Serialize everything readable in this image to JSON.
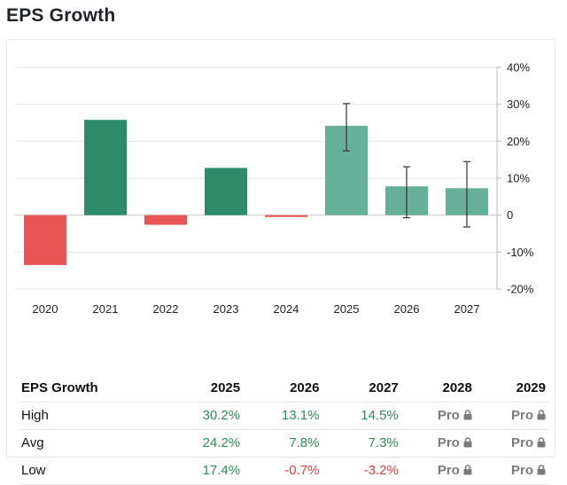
{
  "title": "EPS Growth",
  "colors": {
    "positive_actual": "#2e8b6a",
    "positive_forecast": "#66b09a",
    "negative": "#e85555",
    "error_bar": "#333333",
    "grid": "#e6e6e6",
    "positive_text": "#2e8b57",
    "negative_text": "#e03e3e"
  },
  "chart_data": {
    "type": "bar",
    "categories": [
      "2020",
      "2021",
      "2022",
      "2023",
      "2024",
      "2025",
      "2026",
      "2027"
    ],
    "values": [
      -13.5,
      25.8,
      -2.6,
      12.8,
      -0.5,
      24.2,
      7.8,
      7.3
    ],
    "forecast": [
      false,
      false,
      false,
      false,
      false,
      true,
      true,
      true
    ],
    "error_low": [
      null,
      null,
      null,
      null,
      null,
      17.4,
      -0.7,
      -3.2
    ],
    "error_high": [
      null,
      null,
      null,
      null,
      null,
      30.2,
      13.1,
      14.5
    ],
    "ylim": [
      -20,
      40
    ],
    "yticks": [
      {
        "value": 40,
        "label": "40%"
      },
      {
        "value": 30,
        "label": "30%"
      },
      {
        "value": 20,
        "label": "20%"
      },
      {
        "value": 10,
        "label": "10%"
      },
      {
        "value": 0,
        "label": "0"
      },
      {
        "value": -10,
        "label": "-10%"
      },
      {
        "value": -20,
        "label": "-20%"
      }
    ],
    "y_axis_side": "right",
    "grid": true
  },
  "table": {
    "header_label": "EPS Growth",
    "columns": [
      "2025",
      "2026",
      "2027",
      "2028",
      "2029"
    ],
    "rows": [
      {
        "label": "High",
        "cells": [
          {
            "text": "30.2%",
            "kind": "pos"
          },
          {
            "text": "13.1%",
            "kind": "pos"
          },
          {
            "text": "14.5%",
            "kind": "pos"
          },
          {
            "text": "Pro",
            "kind": "pro"
          },
          {
            "text": "Pro",
            "kind": "pro"
          }
        ]
      },
      {
        "label": "Avg",
        "cells": [
          {
            "text": "24.2%",
            "kind": "pos"
          },
          {
            "text": "7.8%",
            "kind": "pos"
          },
          {
            "text": "7.3%",
            "kind": "pos"
          },
          {
            "text": "Pro",
            "kind": "pro"
          },
          {
            "text": "Pro",
            "kind": "pro"
          }
        ]
      },
      {
        "label": "Low",
        "cells": [
          {
            "text": "17.4%",
            "kind": "pos"
          },
          {
            "text": "-0.7%",
            "kind": "neg"
          },
          {
            "text": "-3.2%",
            "kind": "neg"
          },
          {
            "text": "Pro",
            "kind": "pro"
          },
          {
            "text": "Pro",
            "kind": "pro"
          }
        ]
      }
    ]
  }
}
